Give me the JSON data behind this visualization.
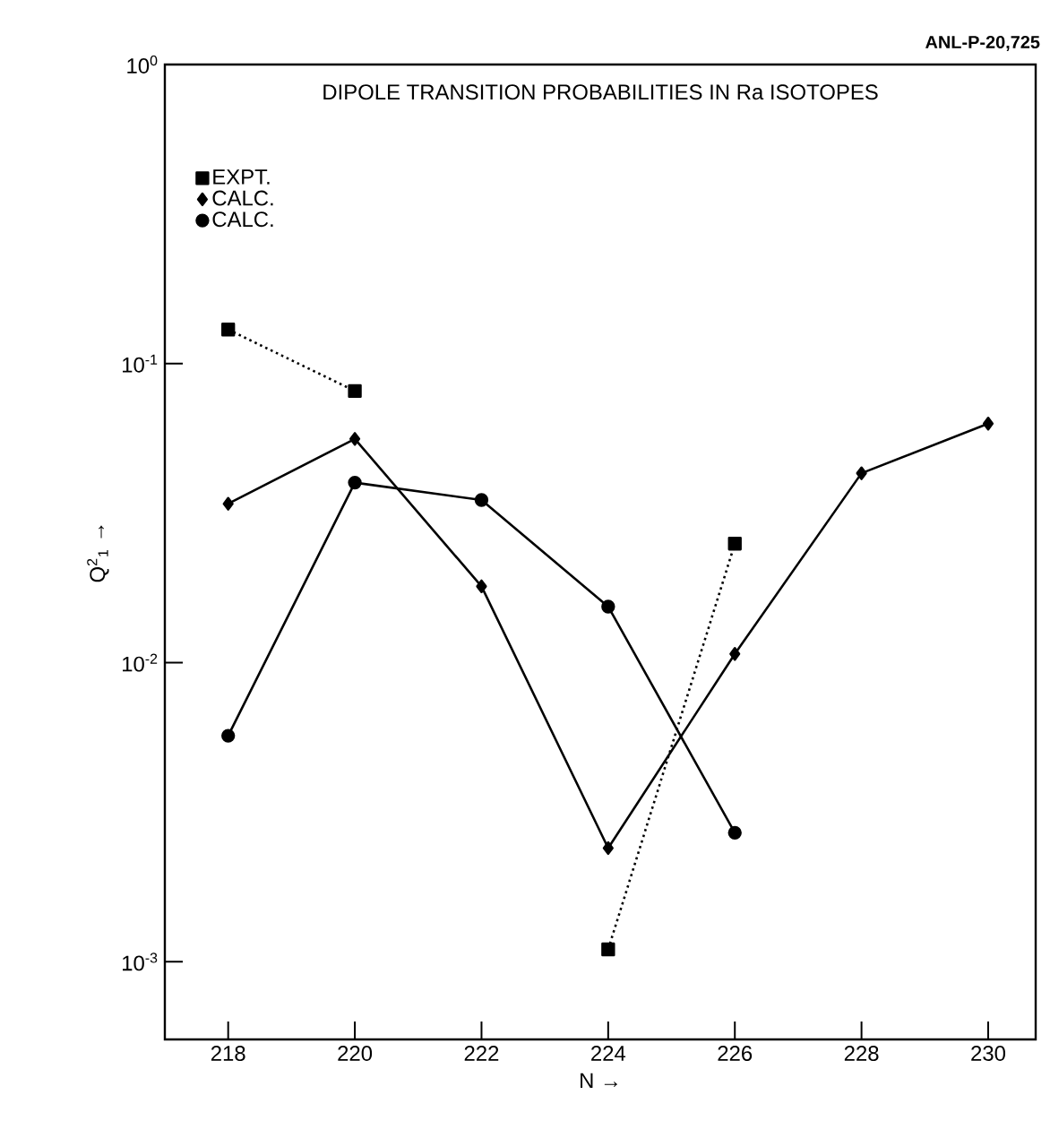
{
  "chart_data": {
    "type": "line",
    "title": "DIPOLE TRANSITION PROBABILITIES IN Ra ISOTOPES",
    "xlabel": "N →",
    "ylabel": "Q$^{2}$$_{1}$ →",
    "annotations": [
      "ANL-P-20,725"
    ],
    "log": "y",
    "legend": "top left",
    "xlim": [
      217,
      230.75
    ],
    "xticks": [
      218,
      220,
      222,
      224,
      226,
      228,
      230
    ],
    "ylim": [
      0.00055,
      1
    ],
    "yticks": [
      {
        "value": 1,
        "label": "10$^{0}$"
      },
      {
        "value": 0.1,
        "label": "10$^{-1}$"
      },
      {
        "value": 0.01,
        "label": "10$^{-2}$"
      },
      {
        "value": 0.001,
        "label": "10$^{-3}$"
      }
    ],
    "series": [
      {
        "name": "EXPT.",
        "color": "#000000",
        "marker": "square",
        "line_style": "dotted",
        "x": [
          218,
          220,
          222,
          224,
          226
        ],
        "values": [
          0.13,
          0.081,
          null,
          0.0011,
          0.025
        ]
      },
      {
        "name": "CALC.",
        "color": "#000000",
        "marker": "diamond",
        "line_style": "solid",
        "x": [
          218,
          220,
          222,
          224,
          226,
          228,
          230
        ],
        "values": [
          0.034,
          0.056,
          0.018,
          0.0024,
          0.0107,
          0.043,
          0.063
        ]
      },
      {
        "name": "CALC.",
        "color": "#000000",
        "marker": "circle",
        "line_style": "solid",
        "x": [
          218,
          220,
          222,
          224,
          226
        ],
        "values": [
          0.0057,
          0.04,
          0.035,
          0.0154,
          0.0027
        ]
      }
    ]
  }
}
